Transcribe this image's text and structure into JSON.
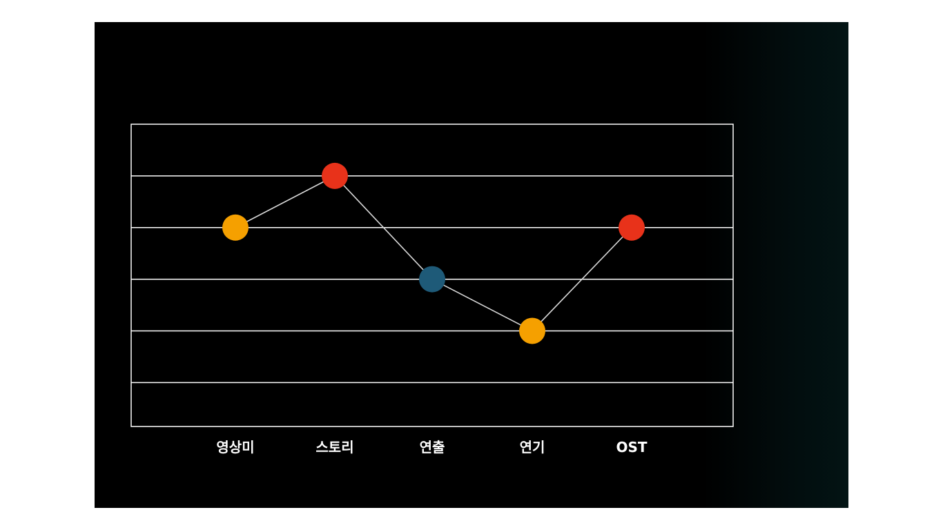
{
  "chart_data": {
    "type": "line",
    "categories": [
      "영상미",
      "스토리",
      "연출",
      "연기",
      "OST"
    ],
    "values": [
      4,
      5,
      3,
      2,
      4
    ],
    "point_colors": [
      "#f5a000",
      "#e8321a",
      "#1e5a78",
      "#f5a000",
      "#e8321a"
    ],
    "line_color": "#d9d9d9",
    "grid_color": "#ffffff",
    "background": "#000000",
    "ylim": [
      0.15,
      6
    ],
    "grid": true,
    "title": "",
    "xlabel": "",
    "ylabel": ""
  }
}
